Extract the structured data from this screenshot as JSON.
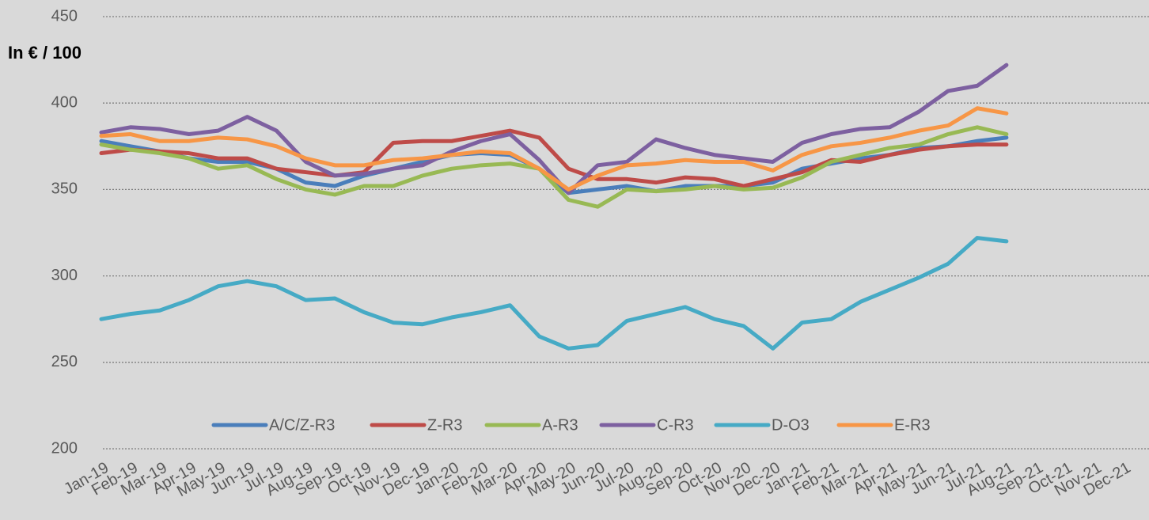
{
  "chart_data": {
    "type": "line",
    "y_label": "In € / 100",
    "categories": [
      "Jan-19",
      "Feb-19",
      "Mar-19",
      "Apr-19",
      "May-19",
      "Jun-19",
      "Jul-19",
      "Aug-19",
      "Sep-19",
      "Oct-19",
      "Nov-19",
      "Dec-19",
      "Jan-20",
      "Feb-20",
      "Mar-20",
      "Apr-20",
      "May-20",
      "Jun-20",
      "Jul-20",
      "Aug-20",
      "Sep-20",
      "Oct-20",
      "Nov-20",
      "Dec-20",
      "Jan-21",
      "Feb-21",
      "Mar-21",
      "Apr-21",
      "May-21",
      "Jun-21",
      "Jul-21",
      "Aug-21",
      "Sep-21",
      "Oct-21",
      "Nov-21",
      "Dec-21"
    ],
    "series": [
      {
        "name": "A/C/Z-R3",
        "color": "#4a7ebb",
        "values": [
          378,
          375,
          372,
          368,
          366,
          366,
          362,
          354,
          352,
          358,
          362,
          366,
          370,
          371,
          370,
          362,
          348,
          350,
          352,
          349,
          352,
          352,
          352,
          354,
          362,
          365,
          368,
          370,
          374,
          375,
          378,
          380,
          null,
          null,
          null,
          null
        ]
      },
      {
        "name": "Z-R3",
        "color": "#be4b48",
        "values": [
          371,
          373,
          372,
          371,
          368,
          368,
          362,
          360,
          358,
          360,
          377,
          378,
          378,
          381,
          384,
          380,
          362,
          356,
          356,
          354,
          357,
          356,
          352,
          356,
          360,
          367,
          366,
          370,
          373,
          375,
          376,
          376,
          null,
          null,
          null,
          null
        ]
      },
      {
        "name": "A-R3",
        "color": "#98b954",
        "values": [
          376,
          373,
          371,
          368,
          362,
          364,
          356,
          350,
          347,
          352,
          352,
          358,
          362,
          364,
          365,
          362,
          344,
          340,
          350,
          349,
          350,
          352,
          350,
          351,
          357,
          366,
          370,
          374,
          376,
          382,
          386,
          382,
          null,
          null,
          null,
          null
        ]
      },
      {
        "name": "C-R3",
        "color": "#7d60a0",
        "values": [
          383,
          386,
          385,
          382,
          384,
          392,
          384,
          366,
          358,
          359,
          362,
          364,
          372,
          378,
          382,
          367,
          348,
          364,
          366,
          379,
          374,
          370,
          368,
          366,
          377,
          382,
          385,
          386,
          395,
          407,
          410,
          422,
          null,
          null,
          null,
          null
        ]
      },
      {
        "name": "D-O3",
        "color": "#46aac5",
        "values": [
          275,
          278,
          280,
          286,
          294,
          297,
          294,
          286,
          287,
          279,
          273,
          272,
          276,
          279,
          283,
          265,
          258,
          260,
          274,
          278,
          282,
          275,
          271,
          258,
          273,
          275,
          285,
          292,
          299,
          307,
          322,
          320,
          null,
          null,
          null,
          null
        ]
      },
      {
        "name": "E-R3",
        "color": "#f79646",
        "values": [
          381,
          382,
          378,
          378,
          380,
          379,
          375,
          368,
          364,
          364,
          367,
          368,
          370,
          372,
          371,
          362,
          350,
          358,
          364,
          365,
          367,
          366,
          366,
          361,
          370,
          375,
          377,
          380,
          384,
          387,
          397,
          394,
          null,
          null,
          null,
          null
        ]
      }
    ],
    "ylim": [
      200,
      450
    ],
    "yticks": [
      200,
      250,
      300,
      350,
      400,
      450
    ],
    "grid": true,
    "legend": "bottom"
  }
}
